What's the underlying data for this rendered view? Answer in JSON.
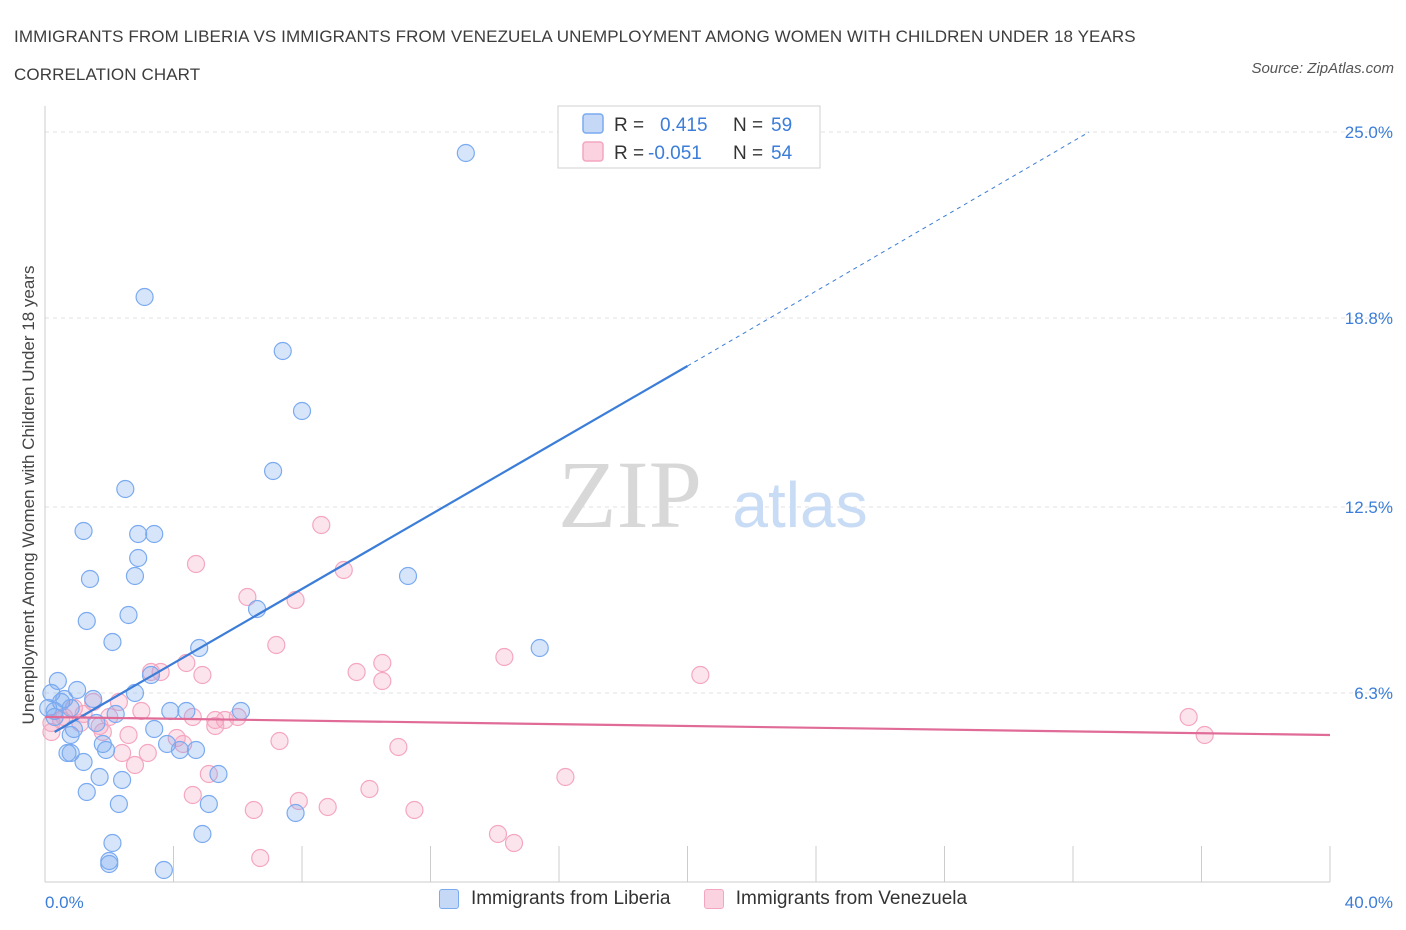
{
  "title": "IMMIGRANTS FROM LIBERIA VS IMMIGRANTS FROM VENEZUELA UNEMPLOYMENT AMONG WOMEN WITH CHILDREN UNDER 18 YEARS CORRELATION CHART",
  "source": "Source: ZipAtlas.com",
  "watermark": {
    "zip": "ZIP",
    "atlas": "atlas"
  },
  "colors": {
    "liberia": "#7aaaf0",
    "liberia_line": "#3b7dd8",
    "venezuela": "#f4a6c0",
    "venezuela_line": "#e06b97",
    "axis_text": "#3b7dd8",
    "grid": "#e2e2e2"
  },
  "legend": {
    "r_label": "R =",
    "n_label": "N =",
    "rows": [
      {
        "r": "0.415",
        "n": "59"
      },
      {
        "r": "-0.051",
        "n": "54"
      }
    ]
  },
  "chart_data": {
    "type": "scatter",
    "title": "IMMIGRANTS FROM LIBERIA VS IMMIGRANTS FROM VENEZUELA UNEMPLOYMENT AMONG WOMEN WITH CHILDREN UNDER 18 YEARS CORRELATION CHART",
    "xlabel": "",
    "ylabel": "Unemployment Among Women with Children Under 18 years",
    "xlim": [
      0,
      40
    ],
    "ylim": [
      0,
      25.0
    ],
    "x_tick_labels": [
      "0.0%",
      "40.0%"
    ],
    "y_ticks": [
      6.3,
      12.5,
      18.8,
      25.0
    ],
    "y_tick_labels": [
      "6.3%",
      "12.5%",
      "18.8%",
      "25.0%"
    ],
    "grid": true,
    "legend_position": "bottom",
    "series": [
      {
        "name": "Immigrants from Liberia",
        "r": 0.415,
        "n": 59,
        "trend": {
          "x0": 0.3,
          "y0": 5.0,
          "x1": 20.0,
          "y1": 17.2,
          "dashed_to_x": 32.5,
          "dashed_to_y": 25.0
        },
        "points": [
          [
            13.1,
            24.3
          ],
          [
            3.1,
            19.5
          ],
          [
            7.4,
            17.7
          ],
          [
            8.0,
            15.7
          ],
          [
            7.1,
            13.7
          ],
          [
            2.5,
            13.1
          ],
          [
            1.2,
            11.7
          ],
          [
            2.9,
            11.6
          ],
          [
            3.4,
            11.6
          ],
          [
            2.9,
            10.8
          ],
          [
            1.4,
            10.1
          ],
          [
            2.8,
            10.2
          ],
          [
            11.3,
            10.2
          ],
          [
            6.6,
            9.1
          ],
          [
            1.3,
            8.7
          ],
          [
            2.6,
            8.9
          ],
          [
            2.1,
            8.0
          ],
          [
            4.8,
            7.8
          ],
          [
            15.4,
            7.8
          ],
          [
            3.3,
            6.9
          ],
          [
            0.4,
            6.7
          ],
          [
            1.0,
            6.4
          ],
          [
            2.8,
            6.3
          ],
          [
            0.6,
            6.1
          ],
          [
            0.2,
            6.3
          ],
          [
            1.5,
            6.1
          ],
          [
            0.5,
            6.0
          ],
          [
            0.8,
            5.8
          ],
          [
            0.3,
            5.7
          ],
          [
            0.1,
            5.8
          ],
          [
            2.2,
            5.6
          ],
          [
            3.9,
            5.7
          ],
          [
            4.4,
            5.7
          ],
          [
            6.1,
            5.7
          ],
          [
            0.3,
            5.5
          ],
          [
            1.6,
            5.3
          ],
          [
            0.9,
            5.1
          ],
          [
            3.4,
            5.1
          ],
          [
            0.8,
            4.9
          ],
          [
            1.8,
            4.6
          ],
          [
            3.8,
            4.6
          ],
          [
            1.9,
            4.4
          ],
          [
            4.7,
            4.4
          ],
          [
            0.7,
            4.3
          ],
          [
            4.2,
            4.4
          ],
          [
            0.8,
            4.3
          ],
          [
            1.2,
            4.0
          ],
          [
            1.7,
            3.5
          ],
          [
            5.4,
            3.6
          ],
          [
            2.4,
            3.4
          ],
          [
            1.3,
            3.0
          ],
          [
            2.3,
            2.6
          ],
          [
            5.1,
            2.6
          ],
          [
            7.8,
            2.3
          ],
          [
            4.9,
            1.6
          ],
          [
            2.1,
            1.3
          ],
          [
            2.0,
            0.7
          ],
          [
            2.0,
            0.6
          ],
          [
            3.7,
            0.4
          ]
        ]
      },
      {
        "name": "Immigrants from Venezuela",
        "r": -0.051,
        "n": 54,
        "trend": {
          "x0": 0.0,
          "y0": 5.5,
          "x1": 40.0,
          "y1": 4.9
        },
        "points": [
          [
            8.6,
            11.9
          ],
          [
            4.7,
            10.6
          ],
          [
            9.3,
            10.4
          ],
          [
            6.3,
            9.5
          ],
          [
            7.8,
            9.4
          ],
          [
            7.2,
            7.9
          ],
          [
            14.3,
            7.5
          ],
          [
            10.5,
            7.3
          ],
          [
            3.3,
            7.0
          ],
          [
            3.6,
            7.0
          ],
          [
            4.4,
            7.3
          ],
          [
            9.7,
            7.0
          ],
          [
            20.4,
            6.9
          ],
          [
            4.9,
            6.9
          ],
          [
            10.5,
            6.7
          ],
          [
            1.5,
            6.0
          ],
          [
            2.3,
            6.0
          ],
          [
            0.9,
            5.8
          ],
          [
            3.0,
            5.7
          ],
          [
            6.0,
            5.5
          ],
          [
            1.2,
            5.6
          ],
          [
            2.0,
            5.5
          ],
          [
            4.6,
            5.5
          ],
          [
            5.6,
            5.4
          ],
          [
            5.3,
            5.4
          ],
          [
            35.6,
            5.5
          ],
          [
            1.1,
            5.3
          ],
          [
            0.6,
            5.5
          ],
          [
            0.5,
            5.4
          ],
          [
            0.2,
            5.3
          ],
          [
            5.3,
            5.2
          ],
          [
            1.8,
            5.0
          ],
          [
            0.2,
            5.0
          ],
          [
            2.6,
            4.9
          ],
          [
            36.1,
            4.9
          ],
          [
            4.1,
            4.8
          ],
          [
            7.3,
            4.7
          ],
          [
            4.3,
            4.6
          ],
          [
            11.0,
            4.5
          ],
          [
            2.4,
            4.3
          ],
          [
            3.2,
            4.3
          ],
          [
            2.8,
            3.9
          ],
          [
            5.1,
            3.6
          ],
          [
            16.2,
            3.5
          ],
          [
            10.1,
            3.1
          ],
          [
            4.6,
            2.9
          ],
          [
            7.9,
            2.7
          ],
          [
            8.8,
            2.5
          ],
          [
            6.5,
            2.4
          ],
          [
            11.5,
            2.4
          ],
          [
            14.1,
            1.6
          ],
          [
            14.6,
            1.3
          ],
          [
            6.7,
            0.8
          ],
          [
            1.7,
            5.2
          ]
        ]
      }
    ]
  }
}
